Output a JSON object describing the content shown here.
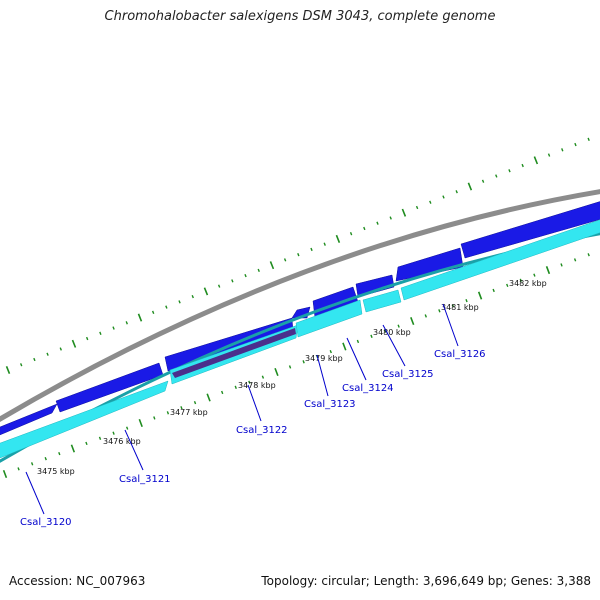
{
  "title": "Chromohalobacter salexigens DSM 3043, complete genome",
  "footer": {
    "accession": "Accession: NC_007963",
    "summary": "Topology: circular; Length: 3,696,649 bp; Genes: 3,388"
  },
  "colors": {
    "forward_cds": "#1a1ae6",
    "reverse_cds": "#33e6f0",
    "highlight_cds": "#4b2e8c",
    "backbone": "#8c8c8c",
    "reverse_backbone": "#1aa0a8",
    "ticks": "#1f8c1f",
    "gene_label": "#0000cc",
    "leader": "#0000cc"
  },
  "axis_labels": [
    "3475 kbp",
    "3476 kbp",
    "3477 kbp",
    "3478 kbp",
    "3479 kbp",
    "3480 kbp",
    "3481 kbp",
    "3482 kbp"
  ],
  "gene_labels": [
    "Csal_3120",
    "Csal_3121",
    "Csal_3122",
    "Csal_3123",
    "Csal_3124",
    "Csal_3125",
    "Csal_3126"
  ]
}
